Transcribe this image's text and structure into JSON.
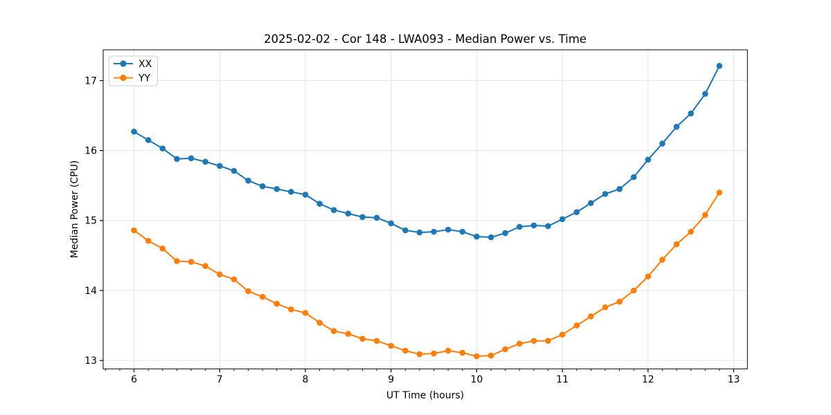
{
  "chart_data": {
    "type": "line",
    "title": "2025-02-02 - Cor 148 - LWA093 - Median Power vs. Time",
    "xlabel": "UT Time (hours)",
    "ylabel": "Median Power (CPU)",
    "xlim": [
      5.64,
      13.16
    ],
    "ylim": [
      12.88,
      17.44
    ],
    "xticks": [
      6,
      7,
      8,
      9,
      10,
      11,
      12,
      13
    ],
    "yticks": [
      13,
      14,
      15,
      16,
      17
    ],
    "x_minor_step": 0.1667,
    "grid": true,
    "grid_color": "#e5e5e5",
    "frame_color": "#000000",
    "background_color": "#ffffff",
    "legend_position": "upper left",
    "x": [
      6.0,
      6.167,
      6.333,
      6.5,
      6.667,
      6.833,
      7.0,
      7.167,
      7.333,
      7.5,
      7.667,
      7.833,
      8.0,
      8.167,
      8.333,
      8.5,
      8.667,
      8.833,
      9.0,
      9.167,
      9.333,
      9.5,
      9.667,
      9.833,
      10.0,
      10.167,
      10.333,
      10.5,
      10.667,
      10.833,
      11.0,
      11.167,
      11.333,
      11.5,
      11.667,
      11.833,
      12.0,
      12.167,
      12.333,
      12.5,
      12.667,
      12.833
    ],
    "series": [
      {
        "name": "XX",
        "color": "#1f77b4",
        "values": [
          16.27,
          16.15,
          16.03,
          15.88,
          15.89,
          15.84,
          15.78,
          15.71,
          15.57,
          15.49,
          15.45,
          15.41,
          15.37,
          15.24,
          15.15,
          15.1,
          15.05,
          15.04,
          14.96,
          14.86,
          14.83,
          14.84,
          14.87,
          14.84,
          14.77,
          14.76,
          14.82,
          14.91,
          14.93,
          14.92,
          15.02,
          15.12,
          15.25,
          15.38,
          15.45,
          15.62,
          15.87,
          16.1,
          16.34,
          16.53,
          16.81,
          17.21
        ]
      },
      {
        "name": "YY",
        "color": "#ff7f0e",
        "values": [
          14.86,
          14.71,
          14.6,
          14.42,
          14.41,
          14.35,
          14.23,
          14.16,
          13.99,
          13.91,
          13.81,
          13.73,
          13.68,
          13.54,
          13.42,
          13.38,
          13.31,
          13.28,
          13.21,
          13.14,
          13.09,
          13.1,
          13.14,
          13.11,
          13.06,
          13.07,
          13.16,
          13.24,
          13.28,
          13.28,
          13.37,
          13.5,
          13.63,
          13.76,
          13.84,
          14.0,
          14.2,
          14.44,
          14.66,
          14.84,
          15.08,
          15.4
        ]
      }
    ]
  }
}
